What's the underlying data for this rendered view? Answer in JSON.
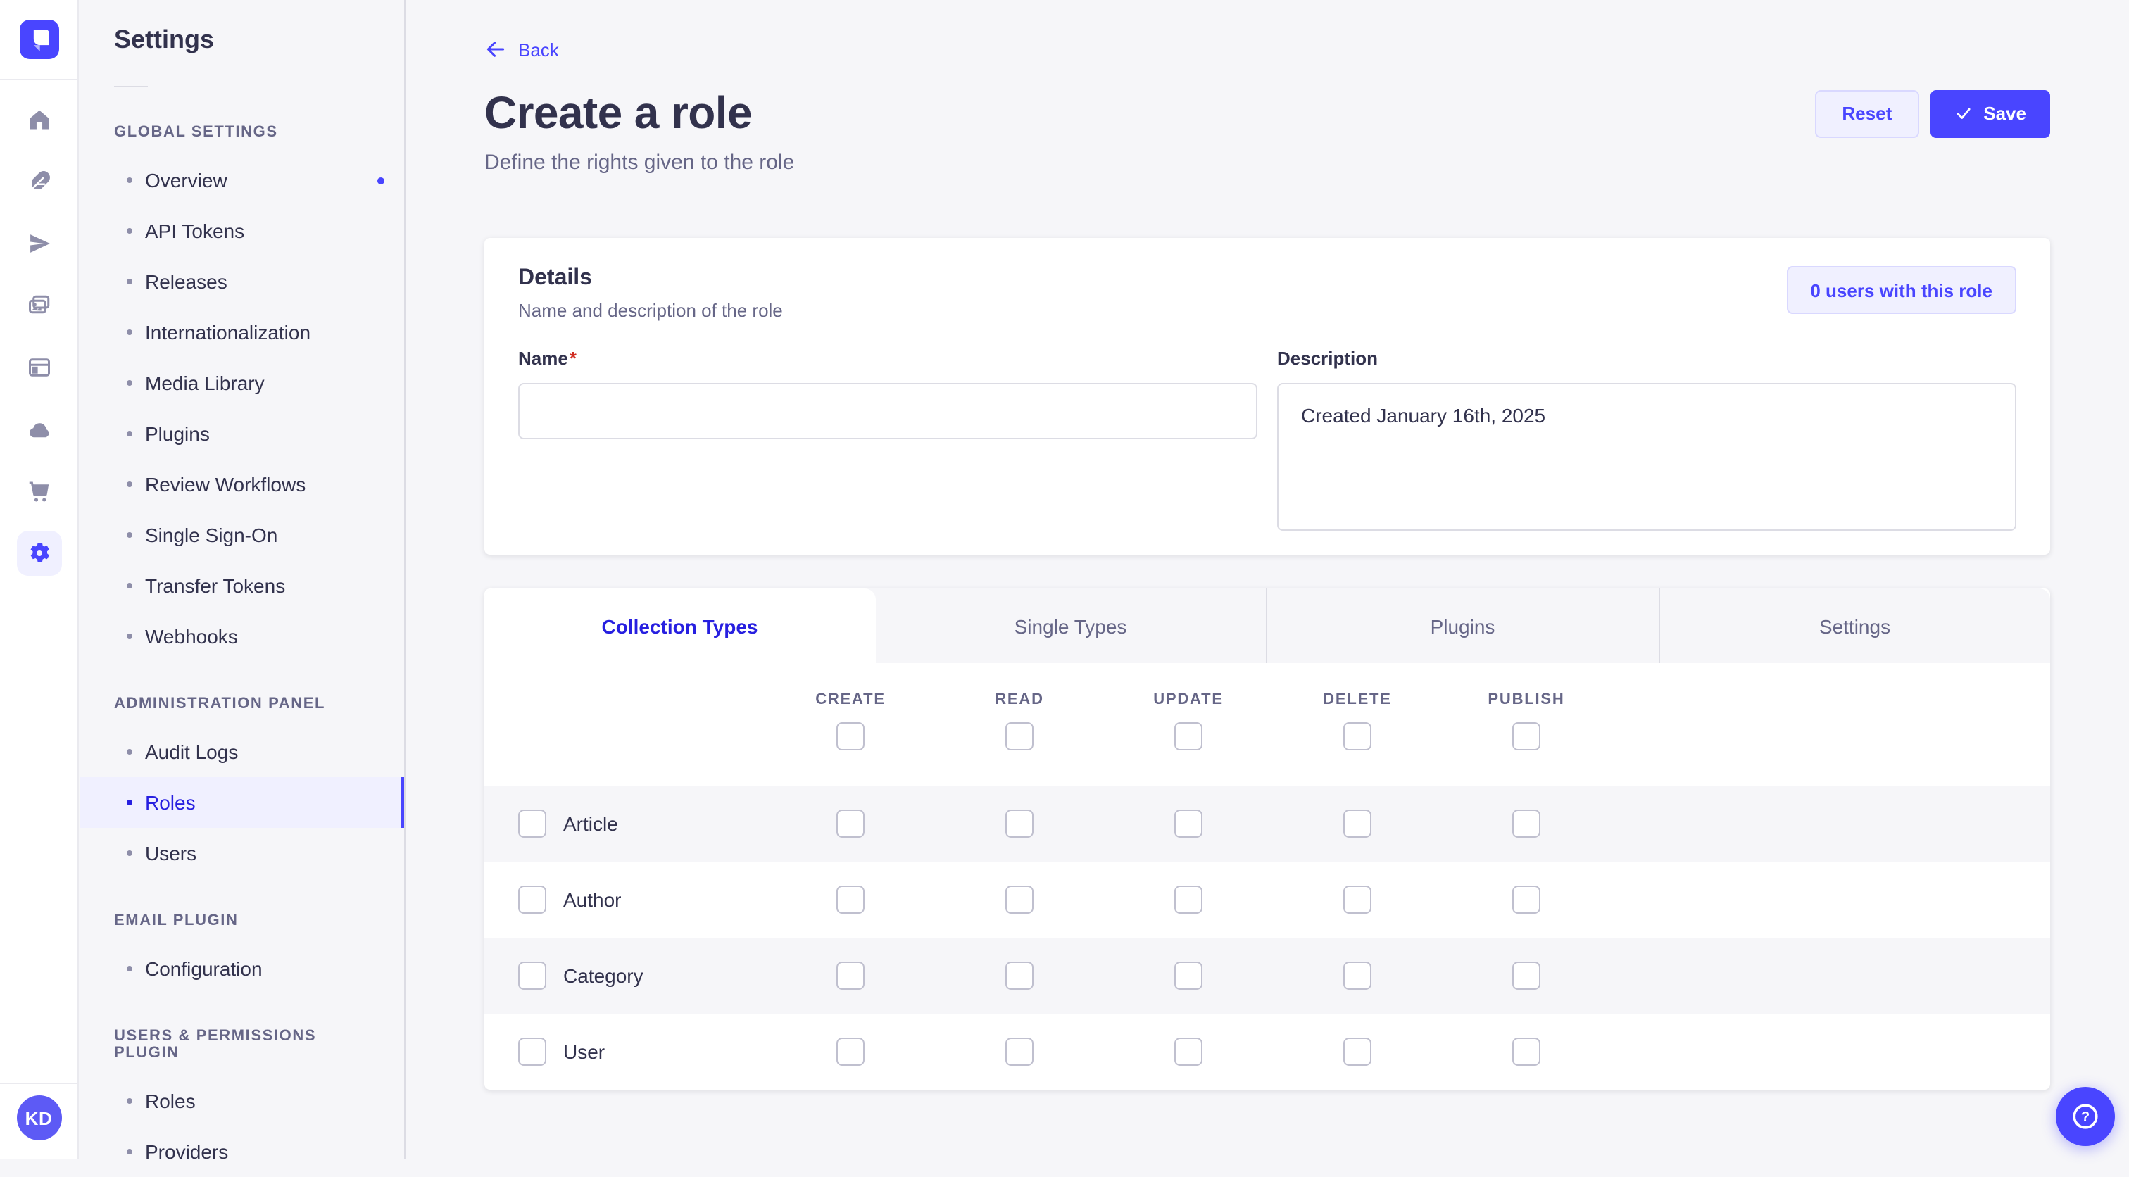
{
  "brand": {
    "primary": "#4945ff",
    "primary_dark_text": "#271fe0",
    "light_purple_bg": "#f0f0ff",
    "purple_border": "#d9d8ff",
    "text_dark": "#32324d",
    "text_gray": "#666687",
    "page_bg": "#f6f6f9",
    "checkbox_border": "#c0c0cf",
    "required_red": "#d02b20"
  },
  "icon_rail": {
    "items": [
      {
        "icon": "home-icon"
      },
      {
        "icon": "content-manager-icon"
      },
      {
        "icon": "releases-icon"
      },
      {
        "icon": "media-library-icon"
      },
      {
        "icon": "content-type-builder-icon"
      },
      {
        "icon": "deploy-icon"
      },
      {
        "icon": "marketplace-icon"
      },
      {
        "icon": "settings-icon",
        "active": true
      }
    ]
  },
  "sidebar": {
    "title": "Settings",
    "sections": [
      {
        "label": "GLOBAL SETTINGS",
        "items": [
          {
            "label": "Overview",
            "dot": true
          },
          {
            "label": "API Tokens"
          },
          {
            "label": "Releases"
          },
          {
            "label": "Internationalization"
          },
          {
            "label": "Media Library"
          },
          {
            "label": "Plugins"
          },
          {
            "label": "Review Workflows"
          },
          {
            "label": "Single Sign-On"
          },
          {
            "label": "Transfer Tokens"
          },
          {
            "label": "Webhooks"
          }
        ]
      },
      {
        "label": "ADMINISTRATION PANEL",
        "items": [
          {
            "label": "Audit Logs"
          },
          {
            "label": "Roles",
            "active": true
          },
          {
            "label": "Users"
          }
        ]
      },
      {
        "label": "EMAIL PLUGIN",
        "items": [
          {
            "label": "Configuration"
          }
        ]
      },
      {
        "label": "USERS & PERMISSIONS PLUGIN",
        "items": [
          {
            "label": "Roles"
          },
          {
            "label": "Providers"
          }
        ]
      }
    ]
  },
  "header": {
    "back_label": "Back",
    "title": "Create a role",
    "subtitle": "Define the rights given to the role",
    "reset_label": "Reset",
    "save_label": "Save"
  },
  "details": {
    "title": "Details",
    "subtitle": "Name and description of the role",
    "users_button": "0 users with this role",
    "name_label": "Name",
    "required_mark": "*",
    "name_value": "",
    "description_label": "Description",
    "description_value": "Created January 16th, 2025"
  },
  "permissions": {
    "tabs": [
      {
        "label": "Collection Types",
        "active": true
      },
      {
        "label": "Single Types"
      },
      {
        "label": "Plugins"
      },
      {
        "label": "Settings"
      }
    ],
    "columns": [
      "CREATE",
      "READ",
      "UPDATE",
      "DELETE",
      "PUBLISH"
    ],
    "select_all": [
      false,
      false,
      false,
      false,
      false
    ],
    "rows": [
      {
        "label": "Article",
        "row_checked": false,
        "checked": [
          false,
          false,
          false,
          false,
          false
        ]
      },
      {
        "label": "Author",
        "row_checked": false,
        "checked": [
          false,
          false,
          false,
          false,
          false
        ]
      },
      {
        "label": "Category",
        "row_checked": false,
        "checked": [
          false,
          false,
          false,
          false,
          false
        ]
      },
      {
        "label": "User",
        "row_checked": false,
        "checked": [
          false,
          false,
          false,
          false,
          false
        ]
      }
    ]
  },
  "user": {
    "initials": "KD"
  }
}
